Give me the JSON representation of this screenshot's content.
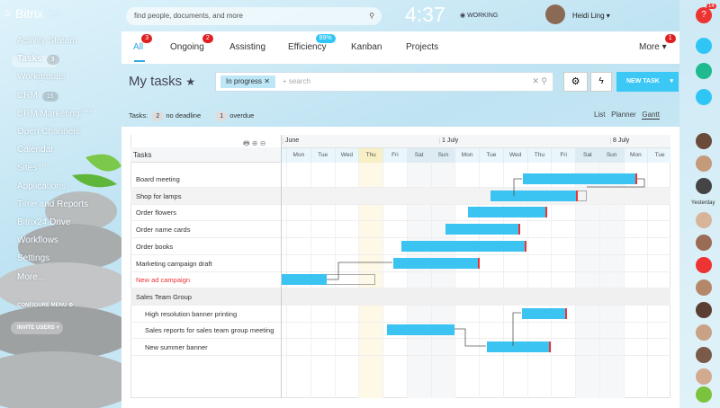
{
  "header": {
    "logo": "Bitrix",
    "logo_num": "24",
    "search_placeholder": "find people, documents, and more",
    "time": "4:37",
    "status": "WORKING",
    "user": "Heidi Ling"
  },
  "sidebar": {
    "items": [
      {
        "label": "Activity Stream"
      },
      {
        "label": "Tasks",
        "counter": 3
      },
      {
        "label": "Workgroups"
      },
      {
        "label": "CRM",
        "counter": 15
      },
      {
        "label": "CRM Marketing",
        "beta": "beta"
      },
      {
        "label": "Open Channels"
      },
      {
        "label": "Calendar"
      },
      {
        "label": "Sites",
        "beta": "beta"
      },
      {
        "label": "Applications"
      },
      {
        "label": "Time and Reports"
      },
      {
        "label": "Bitrix24.Drive"
      },
      {
        "label": "Workflows"
      },
      {
        "label": "Settings"
      },
      {
        "label": "More..."
      }
    ],
    "configure": "CONFIGURE MENU",
    "invite": "INVITE USERS"
  },
  "tabs": [
    {
      "label": "All",
      "badge": 3
    },
    {
      "label": "Ongoing",
      "badge": 2
    },
    {
      "label": "Assisting"
    },
    {
      "label": "Efficiency",
      "badge": "89%"
    },
    {
      "label": "Kanban"
    },
    {
      "label": "Projects"
    },
    {
      "label": "More",
      "badge": 1
    }
  ],
  "toolbar": {
    "title": "My tasks",
    "filter": "In progress",
    "search_placeholder": "search",
    "new_task": "NEW TASK"
  },
  "counters": {
    "label": "Tasks:",
    "items": [
      {
        "count": 2,
        "label": "no deadline"
      },
      {
        "count": 1,
        "label": "overdue"
      }
    ]
  },
  "views": [
    "List",
    "Planner",
    "Gantt"
  ],
  "gantt": {
    "header": "Tasks",
    "months": [
      "June",
      "1 July",
      "8 July"
    ],
    "days": [
      "Mon",
      "Tue",
      "Wed",
      "Thu",
      "Fri",
      "Sat",
      "Sun",
      "Mon",
      "Tue",
      "Wed",
      "Thu",
      "Fri",
      "Sat",
      "Sun",
      "Mon",
      "Tue"
    ],
    "tasks": [
      {
        "title": "Board meeting"
      },
      {
        "title": "Shop for lamps"
      },
      {
        "title": "Order flowers"
      },
      {
        "title": "Order name cards"
      },
      {
        "title": "Order books"
      },
      {
        "title": "Marketing campaign draft"
      },
      {
        "title": "New ad campaign"
      },
      {
        "title": "Sales Team Group"
      },
      {
        "title": "High resolution banner printing"
      },
      {
        "title": "Sales reports for sales team group meeting"
      },
      {
        "title": "New summer banner"
      }
    ]
  },
  "right_panel": {
    "badge": 14,
    "yesterday": "Yesterday"
  }
}
